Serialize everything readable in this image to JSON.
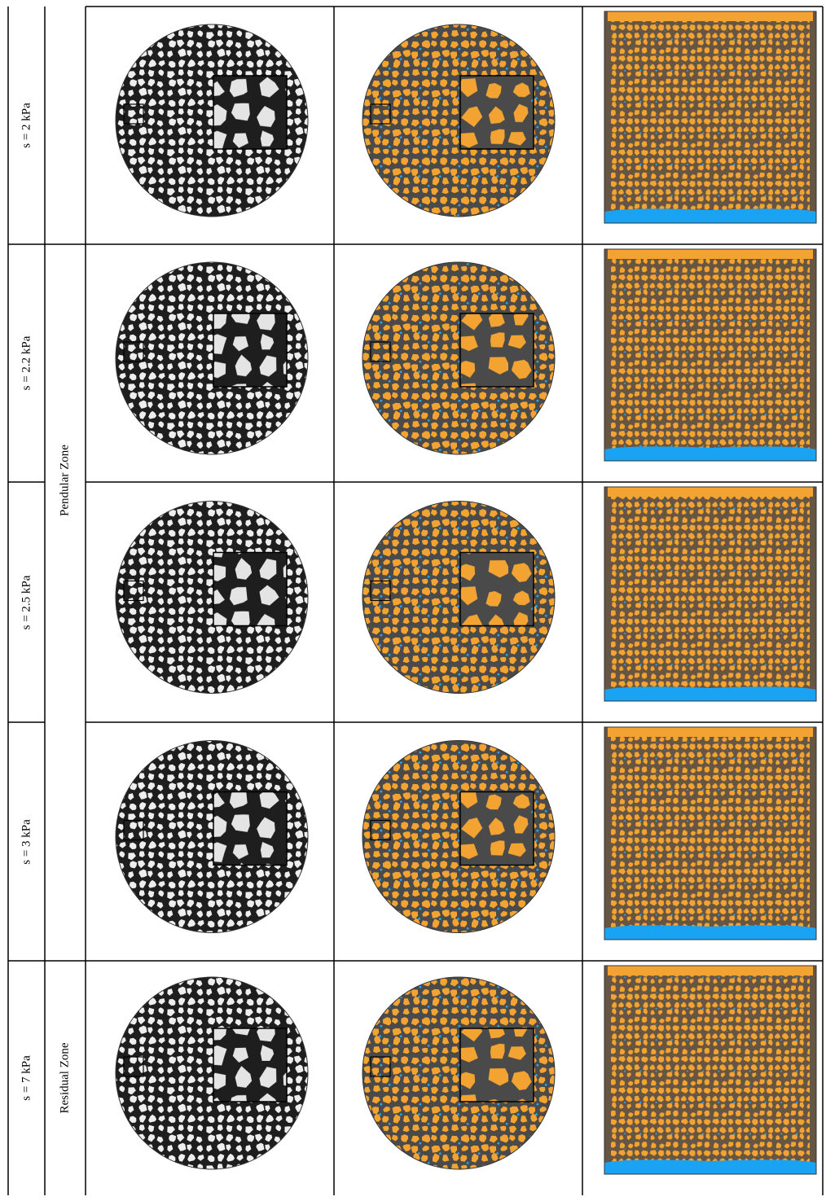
{
  "rows": [
    {
      "suction": "s = 2 kPa"
    },
    {
      "suction": "s = 2.2 kPa"
    },
    {
      "suction": "s = 2.5 kPa"
    },
    {
      "suction": "s = 3 kPa"
    },
    {
      "suction": "s = 7 kPa"
    }
  ],
  "zones": [
    {
      "label": "Pendular Zone"
    },
    {
      "label": "Residual Zone"
    }
  ]
}
